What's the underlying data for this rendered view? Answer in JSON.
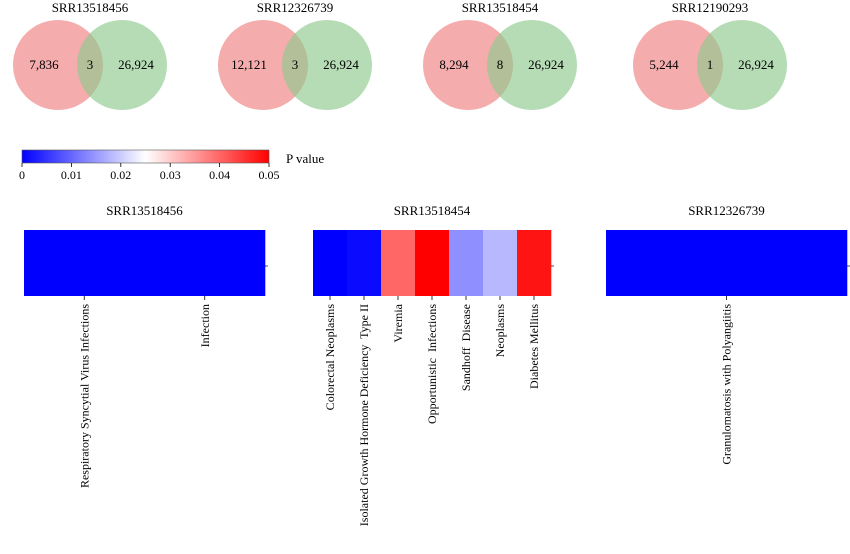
{
  "venns": [
    {
      "title": "SRR13518456",
      "left_only": "7,836",
      "overlap": "3",
      "right_only": "26,924"
    },
    {
      "title": "SRR12326739",
      "left_only": "12,121",
      "overlap": "3",
      "right_only": "26,924"
    },
    {
      "title": "SRR13518454",
      "left_only": "8,294",
      "overlap": "8",
      "right_only": "26,924"
    },
    {
      "title": "SRR12190293",
      "left_only": "5,244",
      "overlap": "1",
      "right_only": "26,924"
    }
  ],
  "colors": {
    "venn_left": "#f08080",
    "venn_right": "#8fc98f",
    "venn_overlap": "#b3a483",
    "scale_low": "#0000ff",
    "scale_mid": "#ffffff",
    "scale_high": "#ff0000"
  },
  "colorbar": {
    "label": "P value",
    "ticks": [
      "0",
      "0.01",
      "0.02",
      "0.03",
      "0.04",
      "0.05"
    ],
    "min": 0,
    "max": 0.05
  },
  "chart_data": [
    {
      "type": "heatmap",
      "title": "SRR13518456",
      "categories": [
        "Respiratory Syncytial Virus Infections",
        "Infection"
      ],
      "values": [
        0.0,
        0.0
      ]
    },
    {
      "type": "heatmap",
      "title": "SRR13518454",
      "categories": [
        "Colorectal Neoplasms",
        "Isolated Growth Hormone Deficiency  Type II",
        "Viremia",
        "Opportunistic  Infections",
        "Sandhoff  Disease",
        "Neoplasms",
        "Diabetes Mellitus"
      ],
      "values": [
        0.0,
        0.001,
        0.04,
        0.05,
        0.014,
        0.018,
        0.048
      ]
    },
    {
      "type": "heatmap",
      "title": "SRR12326739",
      "categories": [
        "Granulomatosis with Polyangiitis"
      ],
      "values": [
        0.0
      ]
    }
  ]
}
